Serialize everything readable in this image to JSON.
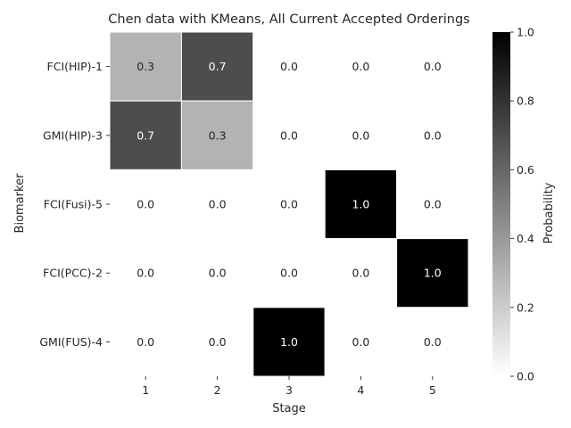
{
  "chart_data": {
    "type": "heatmap",
    "title": "Chen data with KMeans, All Current Accepted Orderings",
    "xlabel": "Stage",
    "ylabel": "Biomarker",
    "x_categories": [
      "1",
      "2",
      "3",
      "4",
      "5"
    ],
    "y_categories": [
      "FCI(HIP)-1",
      "GMI(HIP)-3",
      "FCI(Fusi)-5",
      "FCI(PCC)-2",
      "GMI(FUS)-4"
    ],
    "values": [
      [
        0.3,
        0.7,
        0.0,
        0.0,
        0.0
      ],
      [
        0.7,
        0.3,
        0.0,
        0.0,
        0.0
      ],
      [
        0.0,
        0.0,
        0.0,
        1.0,
        0.0
      ],
      [
        0.0,
        0.0,
        0.0,
        0.0,
        1.0
      ],
      [
        0.0,
        0.0,
        1.0,
        0.0,
        0.0
      ]
    ],
    "colorbar": {
      "label": "Probability",
      "range": [
        0.0,
        1.0
      ],
      "ticks": [
        "0.0",
        "0.2",
        "0.4",
        "0.6",
        "0.8",
        "1.0"
      ],
      "colormap": "Greys",
      "low_color": "#ffffff",
      "high_color": "#000000"
    },
    "annotations": "cell values shown with 1 decimal",
    "grid_lines_between_cells": true
  }
}
